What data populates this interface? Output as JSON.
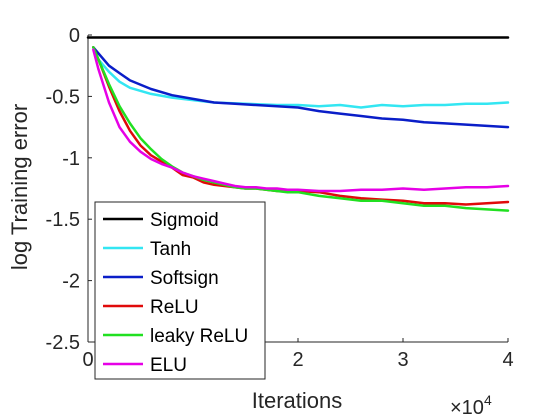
{
  "chart_data": {
    "type": "line",
    "xlabel": "Iterations",
    "ylabel": "log Training error",
    "x_multiplier": "×10",
    "x_exponent": "4",
    "xlim": [
      0,
      4
    ],
    "ylim": [
      -2.5,
      0
    ],
    "xticks": [
      {
        "v": 0,
        "label": "0"
      },
      {
        "v": 2,
        "label": "2"
      },
      {
        "v": 3,
        "label": "3"
      },
      {
        "v": 4,
        "label": "4"
      }
    ],
    "yticks": [
      {
        "v": 0,
        "label": "0"
      },
      {
        "v": -0.5,
        "label": "-0.5"
      },
      {
        "v": -1,
        "label": "-1"
      },
      {
        "v": -1.5,
        "label": "-1.5"
      },
      {
        "v": -2,
        "label": "-2"
      },
      {
        "v": -2.5,
        "label": "-2.5"
      }
    ],
    "grid": false,
    "legend_position": "bottom-left",
    "series": [
      {
        "name": "Sigmoid",
        "color": "#000000",
        "points": [
          [
            0,
            -0.02
          ],
          [
            0.5,
            -0.02
          ],
          [
            1,
            -0.02
          ],
          [
            1.5,
            -0.02
          ],
          [
            2,
            -0.02
          ],
          [
            2.5,
            -0.02
          ],
          [
            3,
            -0.02
          ],
          [
            3.5,
            -0.02
          ],
          [
            4,
            -0.02
          ]
        ]
      },
      {
        "name": "Tanh",
        "color": "#33e6f2",
        "points": [
          [
            0.05,
            -0.1
          ],
          [
            0.1,
            -0.2
          ],
          [
            0.2,
            -0.3
          ],
          [
            0.3,
            -0.38
          ],
          [
            0.4,
            -0.43
          ],
          [
            0.6,
            -0.48
          ],
          [
            0.8,
            -0.51
          ],
          [
            1.0,
            -0.53
          ],
          [
            1.2,
            -0.55
          ],
          [
            1.5,
            -0.56
          ],
          [
            1.8,
            -0.57
          ],
          [
            2.0,
            -0.57
          ],
          [
            2.2,
            -0.58
          ],
          [
            2.4,
            -0.57
          ],
          [
            2.6,
            -0.59
          ],
          [
            2.8,
            -0.57
          ],
          [
            3.0,
            -0.58
          ],
          [
            3.2,
            -0.57
          ],
          [
            3.4,
            -0.57
          ],
          [
            3.6,
            -0.56
          ],
          [
            3.8,
            -0.56
          ],
          [
            4.0,
            -0.55
          ]
        ]
      },
      {
        "name": "Softsign",
        "color": "#0a1ec8",
        "points": [
          [
            0.05,
            -0.1
          ],
          [
            0.1,
            -0.15
          ],
          [
            0.2,
            -0.25
          ],
          [
            0.3,
            -0.31
          ],
          [
            0.4,
            -0.37
          ],
          [
            0.6,
            -0.44
          ],
          [
            0.8,
            -0.49
          ],
          [
            1.0,
            -0.52
          ],
          [
            1.2,
            -0.55
          ],
          [
            1.4,
            -0.56
          ],
          [
            1.6,
            -0.57
          ],
          [
            1.8,
            -0.58
          ],
          [
            2.0,
            -0.59
          ],
          [
            2.2,
            -0.62
          ],
          [
            2.4,
            -0.64
          ],
          [
            2.6,
            -0.66
          ],
          [
            2.8,
            -0.68
          ],
          [
            3.0,
            -0.69
          ],
          [
            3.2,
            -0.71
          ],
          [
            3.4,
            -0.72
          ],
          [
            3.6,
            -0.73
          ],
          [
            3.8,
            -0.74
          ],
          [
            4.0,
            -0.75
          ]
        ]
      },
      {
        "name": "ReLU",
        "color": "#e00a0a",
        "points": [
          [
            0.05,
            -0.1
          ],
          [
            0.1,
            -0.2
          ],
          [
            0.2,
            -0.42
          ],
          [
            0.3,
            -0.62
          ],
          [
            0.4,
            -0.78
          ],
          [
            0.5,
            -0.9
          ],
          [
            0.6,
            -0.98
          ],
          [
            0.7,
            -1.03
          ],
          [
            0.8,
            -1.08
          ],
          [
            0.9,
            -1.14
          ],
          [
            1.0,
            -1.16
          ],
          [
            1.1,
            -1.2
          ],
          [
            1.2,
            -1.22
          ],
          [
            1.3,
            -1.23
          ],
          [
            1.4,
            -1.24
          ],
          [
            1.5,
            -1.25
          ],
          [
            1.6,
            -1.25
          ],
          [
            1.7,
            -1.26
          ],
          [
            1.8,
            -1.27
          ],
          [
            1.9,
            -1.27
          ],
          [
            2.0,
            -1.27
          ],
          [
            2.2,
            -1.28
          ],
          [
            2.4,
            -1.31
          ],
          [
            2.6,
            -1.33
          ],
          [
            2.8,
            -1.34
          ],
          [
            3.0,
            -1.35
          ],
          [
            3.2,
            -1.37
          ],
          [
            3.4,
            -1.37
          ],
          [
            3.6,
            -1.38
          ],
          [
            3.8,
            -1.37
          ],
          [
            4.0,
            -1.36
          ]
        ]
      },
      {
        "name": "leaky ReLU",
        "color": "#21e021",
        "points": [
          [
            0.05,
            -0.1
          ],
          [
            0.1,
            -0.2
          ],
          [
            0.2,
            -0.4
          ],
          [
            0.3,
            -0.58
          ],
          [
            0.4,
            -0.72
          ],
          [
            0.5,
            -0.84
          ],
          [
            0.6,
            -0.93
          ],
          [
            0.7,
            -1.01
          ],
          [
            0.8,
            -1.07
          ],
          [
            0.9,
            -1.12
          ],
          [
            1.0,
            -1.15
          ],
          [
            1.1,
            -1.18
          ],
          [
            1.2,
            -1.2
          ],
          [
            1.3,
            -1.22
          ],
          [
            1.4,
            -1.24
          ],
          [
            1.5,
            -1.25
          ],
          [
            1.6,
            -1.25
          ],
          [
            1.7,
            -1.26
          ],
          [
            1.8,
            -1.27
          ],
          [
            1.9,
            -1.28
          ],
          [
            2.0,
            -1.28
          ],
          [
            2.2,
            -1.31
          ],
          [
            2.4,
            -1.33
          ],
          [
            2.6,
            -1.35
          ],
          [
            2.8,
            -1.35
          ],
          [
            3.0,
            -1.37
          ],
          [
            3.2,
            -1.39
          ],
          [
            3.4,
            -1.39
          ],
          [
            3.6,
            -1.41
          ],
          [
            3.8,
            -1.42
          ],
          [
            4.0,
            -1.43
          ]
        ]
      },
      {
        "name": "ELU",
        "color": "#e600e6",
        "points": [
          [
            0.05,
            -0.12
          ],
          [
            0.1,
            -0.28
          ],
          [
            0.2,
            -0.55
          ],
          [
            0.3,
            -0.75
          ],
          [
            0.4,
            -0.87
          ],
          [
            0.5,
            -0.95
          ],
          [
            0.6,
            -1.01
          ],
          [
            0.7,
            -1.05
          ],
          [
            0.8,
            -1.08
          ],
          [
            0.9,
            -1.12
          ],
          [
            1.0,
            -1.15
          ],
          [
            1.1,
            -1.17
          ],
          [
            1.2,
            -1.19
          ],
          [
            1.3,
            -1.21
          ],
          [
            1.4,
            -1.23
          ],
          [
            1.5,
            -1.24
          ],
          [
            1.6,
            -1.24
          ],
          [
            1.7,
            -1.25
          ],
          [
            1.8,
            -1.25
          ],
          [
            1.9,
            -1.26
          ],
          [
            2.0,
            -1.26
          ],
          [
            2.2,
            -1.27
          ],
          [
            2.4,
            -1.27
          ],
          [
            2.6,
            -1.26
          ],
          [
            2.8,
            -1.26
          ],
          [
            3.0,
            -1.25
          ],
          [
            3.2,
            -1.26
          ],
          [
            3.4,
            -1.25
          ],
          [
            3.6,
            -1.24
          ],
          [
            3.8,
            -1.24
          ],
          [
            4.0,
            -1.23
          ]
        ]
      }
    ]
  }
}
